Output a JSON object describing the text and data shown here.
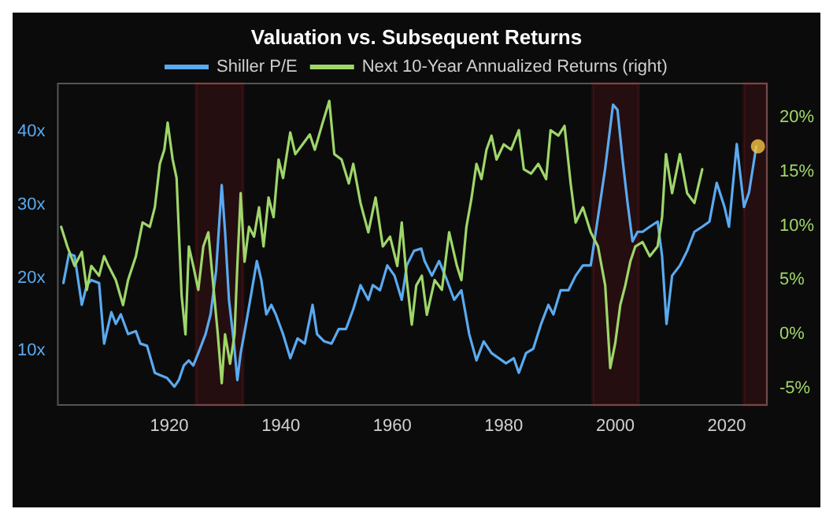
{
  "chart_data": {
    "type": "line",
    "title": "Valuation vs. Subsequent Returns",
    "legend": "top",
    "grid": false,
    "marker": "none",
    "xlim": [
      1900,
      2027.2
    ],
    "xticks": [
      1920,
      1940,
      1960,
      1980,
      2000,
      2020
    ],
    "ylim": [
      2.6,
      46.6
    ],
    "yticks": [
      {
        "value": 10,
        "label": "10x"
      },
      {
        "value": 20,
        "label": "20x"
      },
      {
        "value": 30,
        "label": "30x"
      },
      {
        "value": 40,
        "label": "40x"
      }
    ],
    "y2lim": [
      -6.5,
      23.1
    ],
    "y2ticks": [
      {
        "value": -5,
        "label": "-5%"
      },
      {
        "value": 0,
        "label": "0%"
      },
      {
        "value": 5,
        "label": "5%"
      },
      {
        "value": 10,
        "label": "10%"
      },
      {
        "value": 15,
        "label": "15%"
      },
      {
        "value": 20,
        "label": "20%"
      }
    ],
    "series": [
      {
        "name": "Shiller P/E",
        "color": "#5aaaf0",
        "x": [
          1901,
          1902,
          1903,
          1904.3,
          1905.2,
          1906,
          1907.4,
          1908.3,
          1909.6,
          1910.4,
          1911.3,
          1912.6,
          1914,
          1914.8,
          1916,
          1917.4,
          1918.3,
          1919.6,
          1920.9,
          1921.7,
          1922.6,
          1923.5,
          1924.3,
          1925.2,
          1926.5,
          1927.4,
          1928.4,
          1929.4,
          1930,
          1930.7,
          1931.6,
          1932.2,
          1932.8,
          1933.9,
          1934.8,
          1935.7,
          1936.5,
          1937.4,
          1938.3,
          1939.1,
          1940.4,
          1941.7,
          1943,
          1944.3,
          1945.7,
          1946.5,
          1947.8,
          1949.1,
          1950.4,
          1951.7,
          1953,
          1954.3,
          1955.7,
          1956.5,
          1957.8,
          1959.1,
          1960.4,
          1961.7,
          1962.6,
          1963.9,
          1965.2,
          1965.8,
          1967.1,
          1968.4,
          1969.8,
          1971.1,
          1972.4,
          1973.8,
          1975.1,
          1976.4,
          1977.8,
          1979.1,
          1980.4,
          1981.8,
          1982.7,
          1984,
          1985.3,
          1986.7,
          1988,
          1988.9,
          1990.2,
          1991.6,
          1992.9,
          1994.2,
          1995.6,
          1996.9,
          1998.2,
          1999.6,
          2000.4,
          2001.3,
          2002.2,
          2003.1,
          2004,
          2004.9,
          2006.2,
          2007.6,
          2008.4,
          2009.2,
          2010.2,
          2011.6,
          2012.9,
          2014.2,
          2015.6,
          2016.9,
          2018.2,
          2019.6,
          2020.4,
          2021.8,
          2023.1,
          2024,
          2025.3
        ],
        "values": [
          19.3,
          23.3,
          23,
          16.3,
          19,
          19.7,
          19.3,
          11,
          15.3,
          13.7,
          15,
          12.3,
          12.7,
          11,
          10.7,
          7,
          6.7,
          6.3,
          5.1,
          6,
          8,
          8.7,
          8,
          9.7,
          12.3,
          15,
          21,
          32.7,
          26.3,
          17,
          11,
          6,
          9.7,
          14.3,
          18.3,
          22.3,
          19.7,
          15,
          16.3,
          15,
          12.3,
          9,
          11.7,
          11,
          16.3,
          12.3,
          11.3,
          11,
          13,
          13,
          15.7,
          19,
          17,
          19,
          18.3,
          21.7,
          20.3,
          17,
          21.7,
          23.7,
          24,
          22.3,
          20.3,
          22.3,
          19.7,
          17,
          18.3,
          12.3,
          8.7,
          11.3,
          9.7,
          9,
          8.3,
          9,
          7,
          9.7,
          10.3,
          13.7,
          16.3,
          15,
          18.3,
          18.3,
          20.3,
          21.7,
          21.7,
          28.3,
          35,
          43.7,
          43,
          36.3,
          30.3,
          25,
          26.3,
          26.3,
          27,
          27.7,
          23,
          13.7,
          20.3,
          21.7,
          23.7,
          26.3,
          27,
          27.7,
          33,
          29.7,
          27,
          38.3,
          29.7,
          31.7,
          38
        ]
      },
      {
        "name": "Next 10-Year Annualized Returns (right)",
        "color": "#9fd66a",
        "axis": "y2",
        "x": [
          1900.6,
          1901.7,
          1903,
          1904.3,
          1905.2,
          1906,
          1907.4,
          1908.3,
          1909.1,
          1910.4,
          1911.7,
          1912.6,
          1914,
          1915.2,
          1916.5,
          1917.4,
          1918.3,
          1919.1,
          1919.7,
          1920.6,
          1921.3,
          1922.2,
          1922.9,
          1923.5,
          1924.3,
          1925.2,
          1926.1,
          1927,
          1927.8,
          1928.7,
          1929.4,
          1930,
          1930.9,
          1931.7,
          1932.2,
          1932.8,
          1933.5,
          1934.3,
          1935.2,
          1936.1,
          1936.9,
          1937.8,
          1938.7,
          1939.6,
          1940.4,
          1941.7,
          1942.6,
          1943.9,
          1945.2,
          1946.1,
          1947.4,
          1948.7,
          1949.6,
          1950.9,
          1952.2,
          1953,
          1954.3,
          1955.7,
          1957,
          1958.3,
          1959.6,
          1960.9,
          1961.7,
          1962.6,
          1963.5,
          1964.3,
          1965.3,
          1966.2,
          1967.6,
          1968.9,
          1970.2,
          1971.6,
          1972.4,
          1973.3,
          1974.2,
          1975.1,
          1976,
          1976.9,
          1977.8,
          1978.7,
          1980,
          1981.3,
          1982.7,
          1983.6,
          1984.9,
          1986.2,
          1987.6,
          1988.4,
          1989.8,
          1990.9,
          1992,
          1992.9,
          1994.2,
          1995.6,
          1996.9,
          1998.2,
          1999.1,
          2000,
          2000.9,
          2001.8,
          2002.7,
          2003.6,
          2004.9,
          2006.2,
          2007.6,
          2008.4,
          2009.1,
          2010.2,
          2011.6,
          2012.9,
          2014.2,
          2015.6
        ],
        "values": [
          9.9,
          8.1,
          6.3,
          7.6,
          4.1,
          6.3,
          5.4,
          7.2,
          6.3,
          5,
          2.7,
          5,
          7.2,
          10.3,
          9.9,
          11.7,
          15.7,
          17,
          19.5,
          16.1,
          14.4,
          3.6,
          0,
          8.1,
          6.3,
          4.1,
          8.1,
          9.4,
          5,
          0,
          -4.5,
          0,
          -2.7,
          0,
          6.3,
          13,
          6.7,
          9.9,
          9,
          11.7,
          8.1,
          12.6,
          10.8,
          16.1,
          14.4,
          18.6,
          16.6,
          17.5,
          18.4,
          17,
          19.3,
          21.5,
          16.6,
          16.1,
          13.9,
          15.7,
          12.1,
          9.4,
          12.6,
          8.1,
          9,
          6.3,
          10.3,
          5,
          0.9,
          4.5,
          5.4,
          1.8,
          5,
          4.1,
          9.4,
          6.3,
          5,
          9.9,
          12.5,
          15.7,
          14.3,
          17,
          18.3,
          16.1,
          17.5,
          17,
          18.8,
          15.2,
          14.8,
          15.7,
          14.3,
          18.8,
          18.3,
          19.2,
          13.9,
          10.3,
          11.7,
          9.4,
          8.1,
          4.5,
          -3.1,
          -0.8,
          2.7,
          4.5,
          6.7,
          8.1,
          8.5,
          7.2,
          8.1,
          10.8,
          16.6,
          13,
          16.6,
          13,
          12.1,
          15.2
        ]
      },
      {
        "type": "scatter",
        "marker": "circle",
        "color": "#f5c542",
        "x": [
          2025.6
        ],
        "values": [
          38
        ]
      }
    ],
    "bands": [
      {
        "axis": "x",
        "from": 1924.8,
        "to": 1933.2,
        "color": "#e0282e"
      },
      {
        "axis": "x",
        "from": 1996,
        "to": 2004.2,
        "color": "#e0282e"
      },
      {
        "axis": "x",
        "from": 2023.1,
        "to": 2027.2,
        "color": "#e0282e"
      }
    ]
  }
}
